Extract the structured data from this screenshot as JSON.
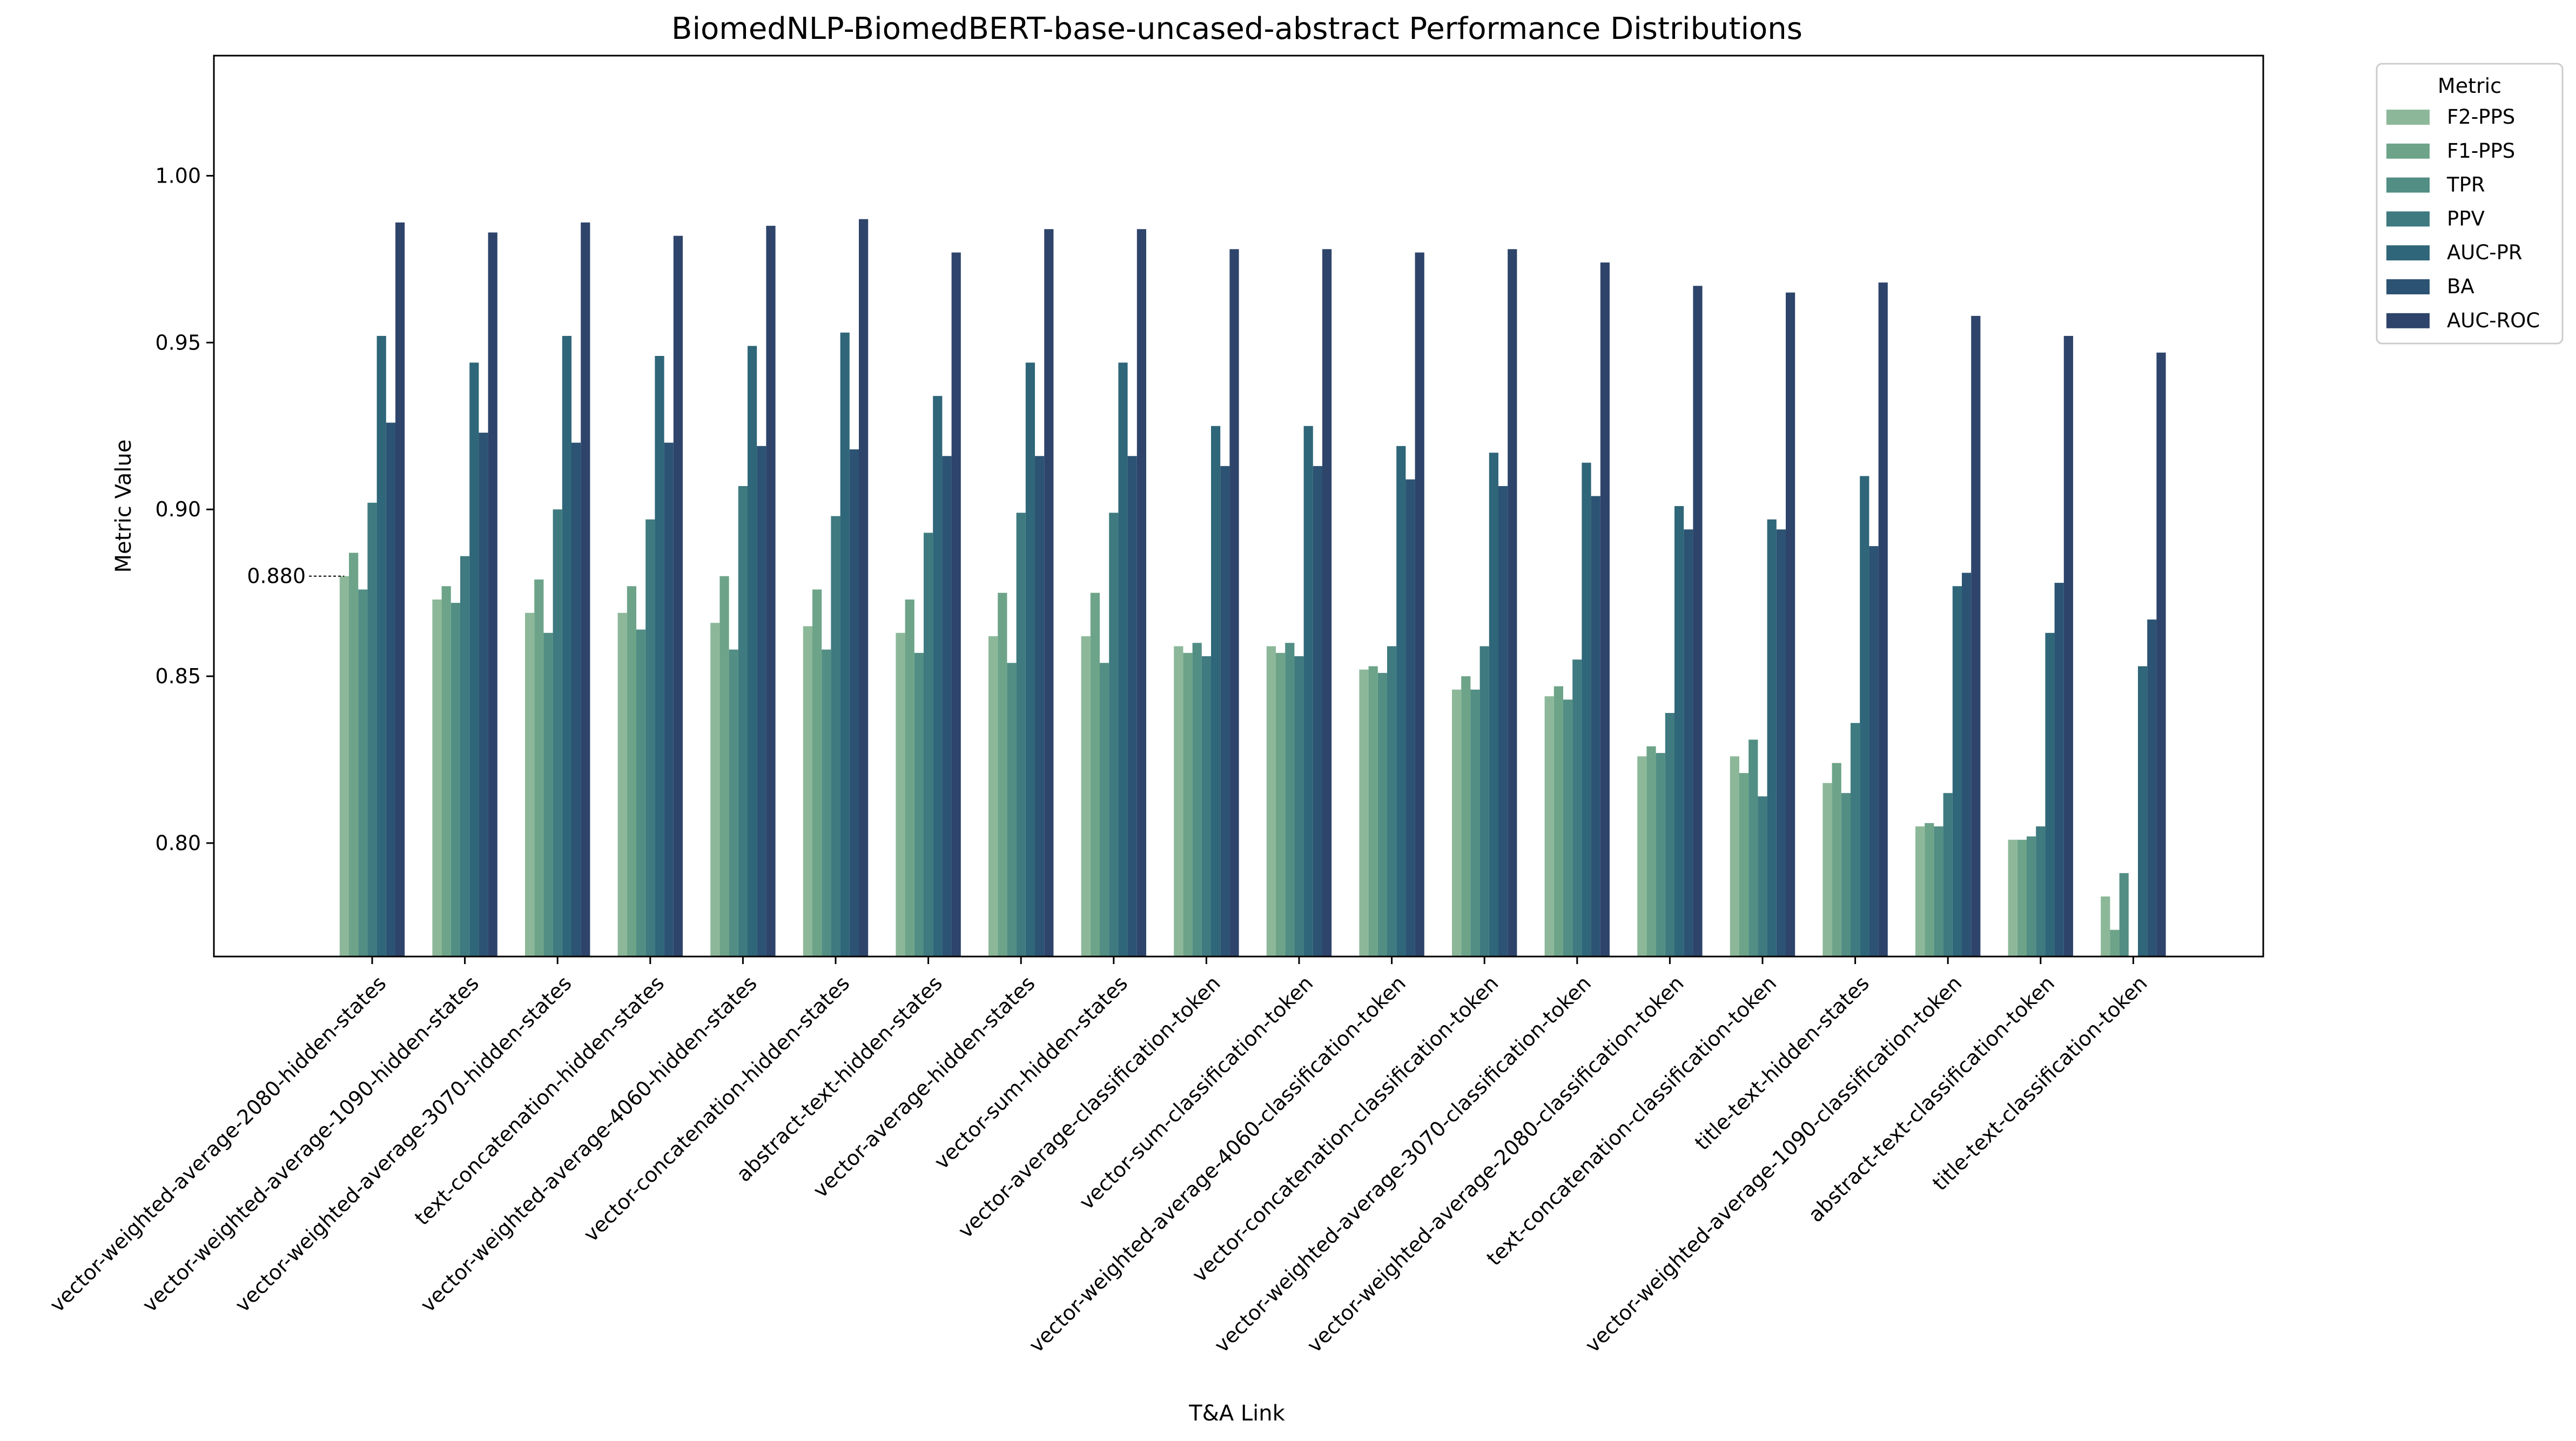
{
  "chart_data": {
    "type": "bar",
    "title": "BiomedNLP-BiomedBERT-base-uncased-abstract Performance Distributions",
    "xlabel": "T&A Link",
    "ylabel": "Metric Value",
    "ylim": [
      0.766,
      1.036
    ],
    "yticks": [
      0.8,
      0.85,
      0.9,
      0.95,
      1.0
    ],
    "ytick_labels": [
      "0.80",
      "0.85",
      "0.90",
      "0.95",
      "1.00"
    ],
    "grid": false,
    "legend": {
      "title": "Metric",
      "placement": "outside-top-right"
    },
    "annotation": {
      "text": "0.880",
      "category_index": 0,
      "series_index": 0,
      "value": 0.88
    },
    "categories": [
      "vector-weighted-average-2080-hidden-states",
      "vector-weighted-average-1090-hidden-states",
      "vector-weighted-average-3070-hidden-states",
      "text-concatenation-hidden-states",
      "vector-weighted-average-4060-hidden-states",
      "vector-concatenation-hidden-states",
      "abstract-text-hidden-states",
      "vector-average-hidden-states",
      "vector-sum-hidden-states",
      "vector-average-classification-token",
      "vector-sum-classification-token",
      "vector-weighted-average-4060-classification-token",
      "vector-concatenation-classification-token",
      "vector-weighted-average-3070-classification-token",
      "vector-weighted-average-2080-classification-token",
      "text-concatenation-classification-token",
      "title-text-hidden-states",
      "vector-weighted-average-1090-classification-token",
      "abstract-text-classification-token",
      "title-text-classification-token"
    ],
    "series": [
      {
        "name": "F2-PPS",
        "color": "#8cb899",
        "values": [
          0.88,
          0.873,
          0.869,
          0.869,
          0.866,
          0.865,
          0.863,
          0.862,
          0.862,
          0.859,
          0.859,
          0.852,
          0.846,
          0.844,
          0.826,
          0.826,
          0.818,
          0.805,
          0.801,
          0.784
        ]
      },
      {
        "name": "F1-PPS",
        "color": "#6da489",
        "values": [
          0.887,
          0.877,
          0.879,
          0.877,
          0.88,
          0.876,
          0.873,
          0.875,
          0.875,
          0.857,
          0.857,
          0.853,
          0.85,
          0.847,
          0.829,
          0.821,
          0.824,
          0.806,
          0.801,
          0.774
        ]
      },
      {
        "name": "TPR",
        "color": "#528e84",
        "values": [
          0.876,
          0.872,
          0.863,
          0.864,
          0.858,
          0.858,
          0.857,
          0.854,
          0.854,
          0.86,
          0.86,
          0.851,
          0.846,
          0.843,
          0.827,
          0.831,
          0.815,
          0.805,
          0.802,
          0.791
        ]
      },
      {
        "name": "PPV",
        "color": "#3e7a7f",
        "values": [
          0.902,
          0.886,
          0.9,
          0.897,
          0.907,
          0.898,
          0.893,
          0.899,
          0.899,
          0.856,
          0.856,
          0.859,
          0.859,
          0.855,
          0.839,
          0.814,
          0.836,
          0.815,
          0.805,
          0.766
        ]
      },
      {
        "name": "AUC-PR",
        "color": "#2f6679",
        "values": [
          0.952,
          0.944,
          0.952,
          0.946,
          0.949,
          0.953,
          0.934,
          0.944,
          0.944,
          0.925,
          0.925,
          0.919,
          0.917,
          0.914,
          0.901,
          0.897,
          0.91,
          0.877,
          0.863,
          0.853
        ]
      },
      {
        "name": "BA",
        "color": "#2c5373",
        "values": [
          0.926,
          0.923,
          0.92,
          0.92,
          0.919,
          0.918,
          0.916,
          0.916,
          0.916,
          0.913,
          0.913,
          0.909,
          0.907,
          0.904,
          0.894,
          0.894,
          0.889,
          0.881,
          0.878,
          0.867
        ]
      },
      {
        "name": "AUC-ROC",
        "color": "#2e446b",
        "values": [
          0.986,
          0.983,
          0.986,
          0.982,
          0.985,
          0.987,
          0.977,
          0.984,
          0.984,
          0.978,
          0.978,
          0.977,
          0.978,
          0.974,
          0.967,
          0.965,
          0.968,
          0.958,
          0.952,
          0.947
        ]
      }
    ]
  }
}
